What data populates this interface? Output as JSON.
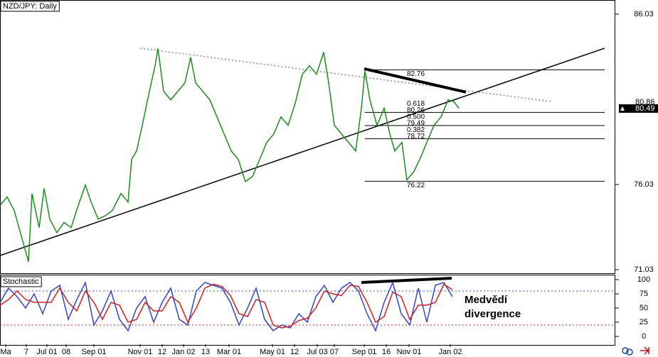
{
  "chart_data": [
    {
      "type": "line",
      "title": "NZD/JPY: Daily",
      "color": "#1f8a1f",
      "x": [
        0,
        10,
        20,
        30,
        40,
        45,
        55,
        62,
        70,
        80,
        90,
        100,
        110,
        120,
        128,
        138,
        148,
        158,
        170,
        180,
        185,
        192,
        200,
        210,
        218,
        222,
        230,
        240,
        250,
        260,
        268,
        275,
        285,
        295,
        305,
        315,
        325,
        335,
        345,
        355,
        365,
        375,
        385,
        395,
        405,
        415,
        425,
        435,
        445,
        455,
        462,
        470,
        480,
        490,
        500,
        508,
        513,
        520,
        530,
        540,
        548,
        555,
        565,
        572,
        582,
        590,
        600,
        610,
        620,
        630,
        638,
        645
      ],
      "values": [
        74.8,
        75.3,
        74.5,
        73.0,
        71.5,
        75.5,
        73.5,
        75.8,
        74.0,
        73.2,
        73.8,
        73.5,
        74.8,
        76.0,
        75.0,
        74.0,
        74.2,
        74.5,
        75.5,
        75.0,
        77.5,
        78.0,
        79.5,
        81.5,
        83.0,
        84.0,
        81.5,
        81.0,
        81.5,
        82.0,
        83.5,
        82.0,
        81.5,
        81.0,
        80.0,
        79.0,
        78.0,
        77.5,
        76.2,
        76.5,
        77.5,
        78.5,
        79.0,
        80.0,
        79.5,
        80.8,
        82.5,
        83.0,
        82.5,
        83.8,
        82.0,
        79.5,
        79.0,
        78.5,
        78.0,
        80.5,
        82.7,
        81.0,
        79.5,
        80.5,
        79.0,
        78.0,
        78.5,
        76.3,
        76.8,
        77.5,
        78.5,
        79.5,
        80.0,
        81.0,
        80.9,
        80.5
      ],
      "xlim": [
        0,
        865
      ],
      "ylim": [
        70.82,
        86.86
      ],
      "yticks": [
        71.03,
        76.03,
        86.03
      ],
      "lines": [
        {
          "style": "solid",
          "x": [
            0,
            850
          ],
          "y": [
            71.86,
            84.03
          ]
        },
        {
          "style": "dotted",
          "x": [
            197,
            775
          ],
          "y": [
            84.03,
            80.9
          ]
        },
        {
          "style": "thick",
          "x": [
            512,
            655
          ],
          "y": [
            82.82,
            81.45
          ]
        }
      ],
      "fib_levels": [
        {
          "price": 82.76
        },
        {
          "ratio": "0.618",
          "price": 80.26
        },
        {
          "ratio": "0.500",
          "price": 79.49
        },
        {
          "ratio": "0.382",
          "price": 78.72
        },
        {
          "price": 76.22
        }
      ],
      "price_tags": [
        80.86,
        80.49
      ]
    },
    {
      "type": "stochastic",
      "title": "Stochastic",
      "x": [
        0,
        12,
        24,
        36,
        48,
        60,
        72,
        84,
        96,
        108,
        120,
        132,
        144,
        156,
        168,
        180,
        192,
        204,
        216,
        228,
        240,
        252,
        264,
        276,
        288,
        300,
        312,
        324,
        336,
        348,
        360,
        372,
        384,
        396,
        408,
        420,
        432,
        444,
        456,
        468,
        480,
        492,
        504,
        516,
        528,
        540,
        552,
        564,
        576,
        588,
        600,
        612,
        624,
        636
      ],
      "series": [
        {
          "color": "#3344cc",
          "values": [
            60,
            85,
            70,
            50,
            75,
            40,
            80,
            90,
            30,
            65,
            95,
            20,
            45,
            80,
            30,
            10,
            50,
            70,
            25,
            60,
            85,
            30,
            20,
            80,
            95,
            90,
            85,
            60,
            20,
            50,
            85,
            30,
            10,
            20,
            15,
            40,
            25,
            70,
            90,
            60,
            85,
            95,
            80,
            40,
            10,
            60,
            95,
            40,
            20,
            85,
            25,
            90,
            95,
            70
          ]
        },
        {
          "color": "#cc2222",
          "values": [
            55,
            65,
            80,
            65,
            60,
            60,
            60,
            85,
            60,
            45,
            80,
            60,
            30,
            60,
            55,
            25,
            30,
            60,
            45,
            45,
            70,
            60,
            25,
            50,
            85,
            92,
            88,
            72,
            40,
            35,
            65,
            60,
            20,
            15,
            18,
            28,
            32,
            50,
            80,
            75,
            72,
            90,
            88,
            60,
            25,
            35,
            78,
            70,
            30,
            55,
            55,
            60,
            92,
            82
          ]
        }
      ],
      "levels": [
        {
          "value": 80,
          "color": "#3344cc"
        },
        {
          "value": 20,
          "color": "#cc2222"
        }
      ],
      "xlim": [
        0,
        865
      ],
      "ylim": [
        -13.75,
        107.5
      ],
      "yticks": [
        0,
        25,
        50,
        75,
        100
      ],
      "xticks": [
        {
          "value": 8,
          "label": "Ma"
        },
        {
          "value": 37,
          "label": "7"
        },
        {
          "value": 66,
          "label": "Jul 01"
        },
        {
          "value": 93,
          "label": "08"
        },
        {
          "value": 132,
          "label": "Sep 01"
        },
        {
          "value": 197,
          "label": "Nov 01"
        },
        {
          "value": 228,
          "label": "12"
        },
        {
          "value": 258,
          "label": "Jan 02"
        },
        {
          "value": 289,
          "label": "13"
        },
        {
          "value": 322,
          "label": "Mar 01"
        },
        {
          "value": 383,
          "label": "May 01"
        },
        {
          "value": 414,
          "label": "12"
        },
        {
          "value": 446,
          "label": "Jul 03"
        },
        {
          "value": 470,
          "label": "07"
        },
        {
          "value": 512,
          "label": "Sep 01"
        },
        {
          "value": 543,
          "label": "16"
        },
        {
          "value": 575,
          "label": "Nov 01"
        },
        {
          "value": 633,
          "label": "Jan 02"
        }
      ],
      "lines": [
        {
          "style": "thick",
          "x": [
            508,
            635
          ],
          "y": [
            95,
            102.5
          ]
        }
      ],
      "annotation": [
        "Medvědí",
        "divergence"
      ]
    }
  ]
}
